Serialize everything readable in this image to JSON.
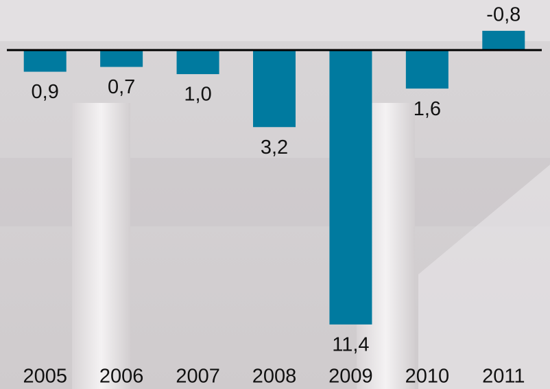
{
  "chart_data": {
    "type": "bar",
    "categories": [
      "2005",
      "2006",
      "2007",
      "2008",
      "2009",
      "2010",
      "2011"
    ],
    "values": [
      0.9,
      0.7,
      1.0,
      3.2,
      11.4,
      1.6,
      -0.8
    ],
    "value_labels": [
      "0,9",
      "0,7",
      "1,0",
      "3,2",
      "11,4",
      "1,6",
      "-0,8"
    ],
    "color": "#007a9f",
    "ylim": [
      -2,
      12
    ],
    "y_inverted": true
  }
}
